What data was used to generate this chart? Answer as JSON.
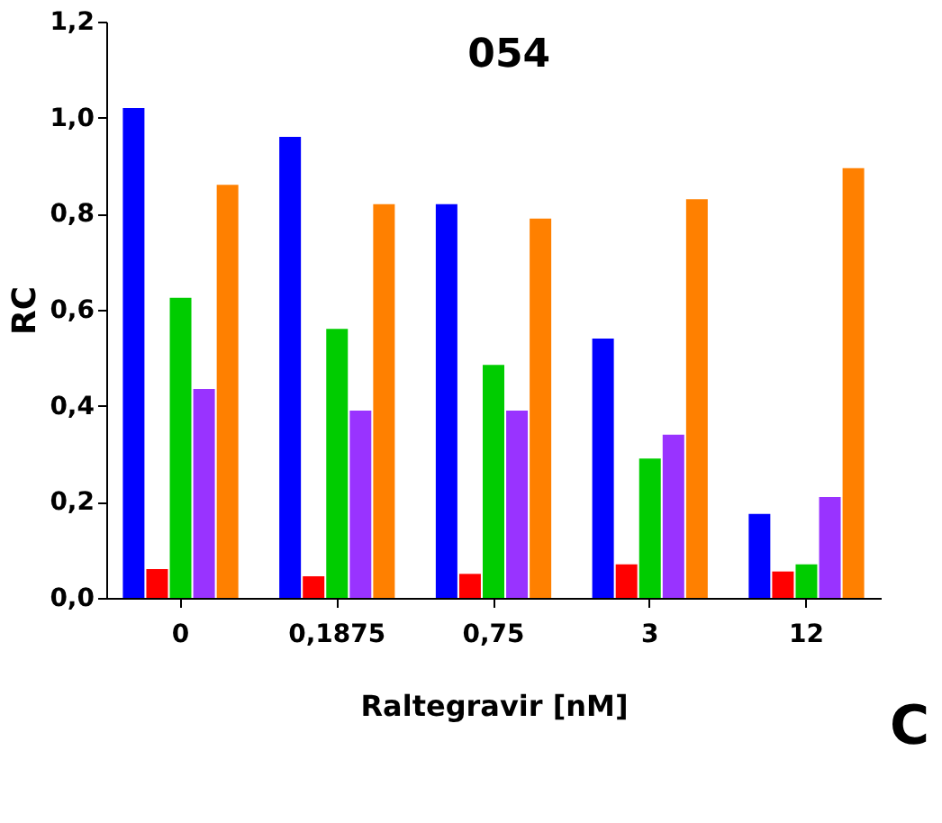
{
  "chart_data": {
    "type": "bar",
    "title": "054",
    "xlabel": "Raltegravir [nM]",
    "ylabel": "RC",
    "categories": [
      "0",
      "0,1875",
      "0,75",
      "3",
      "12"
    ],
    "series": [
      {
        "color": "#0000ff",
        "values": [
          1.02,
          0.96,
          0.82,
          0.54,
          0.175
        ]
      },
      {
        "color": "#ff0000",
        "values": [
          0.06,
          0.045,
          0.05,
          0.07,
          0.055
        ]
      },
      {
        "color": "#00cc00",
        "values": [
          0.625,
          0.56,
          0.485,
          0.29,
          0.07
        ]
      },
      {
        "color": "#9933ff",
        "values": [
          0.435,
          0.39,
          0.39,
          0.34,
          0.21
        ]
      },
      {
        "color": "#ff8000",
        "values": [
          0.86,
          0.82,
          0.79,
          0.83,
          0.895
        ]
      }
    ],
    "ylim": [
      0,
      1.2
    ],
    "yticks": [
      {
        "value": 0,
        "label": "0,0"
      },
      {
        "value": 0.2,
        "label": "0,2"
      },
      {
        "value": 0.4,
        "label": "0,4"
      },
      {
        "value": 0.6,
        "label": "0,6"
      },
      {
        "value": 0.8,
        "label": "0,8"
      },
      {
        "value": 1.0,
        "label": "1,0"
      },
      {
        "value": 1.2,
        "label": "1,2"
      }
    ],
    "grid": false,
    "annotations": [
      "C"
    ]
  }
}
